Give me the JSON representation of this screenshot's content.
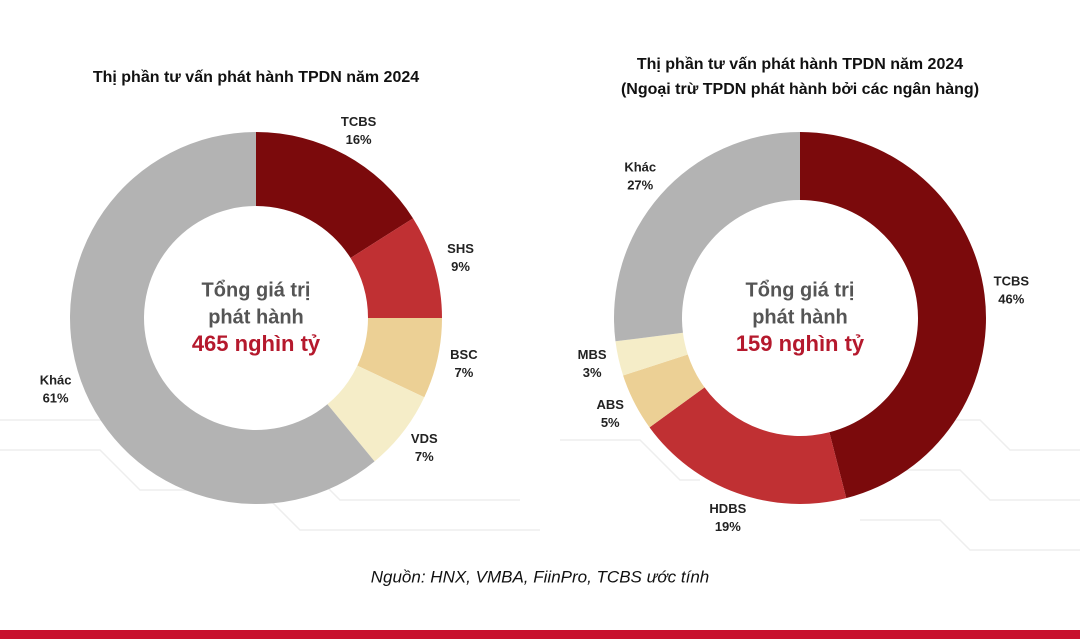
{
  "chart_data": [
    {
      "type": "donut",
      "title": "Thị phần tư vấn phát hành TPDN năm 2024",
      "center_label": [
        "Tổng giá trị",
        "phát hành"
      ],
      "center_value": "465 nghìn tỷ",
      "categories": [
        "TCBS",
        "SHS",
        "BSC",
        "VDS",
        "Khác"
      ],
      "values": [
        16,
        9,
        7,
        7,
        61
      ],
      "value_labels": [
        "16%",
        "9%",
        "7%",
        "7%",
        "61%"
      ],
      "colors": [
        "#7b0a0c",
        "#c03033",
        "#ecd095",
        "#f5edc8",
        "#b3b3b3"
      ]
    },
    {
      "type": "donut",
      "title": "Thị phần tư vấn phát hành TPDN năm 2024",
      "subtitle": "(Ngoại trừ TPDN phát hành bởi các ngân hàng)",
      "center_label": [
        "Tổng giá trị",
        "phát hành"
      ],
      "center_value": "159 nghìn tỷ",
      "categories": [
        "TCBS",
        "HDBS",
        "ABS",
        "MBS",
        "Khác"
      ],
      "values": [
        46,
        19,
        5,
        3,
        27
      ],
      "value_labels": [
        "46%",
        "19%",
        "5%",
        "3%",
        "27%"
      ],
      "colors": [
        "#7b0a0c",
        "#c03033",
        "#ecd095",
        "#f5edc8",
        "#b3b3b3"
      ]
    }
  ],
  "source": "Nguồn: HNX, VMBA, FiinPro, TCBS ước tính"
}
